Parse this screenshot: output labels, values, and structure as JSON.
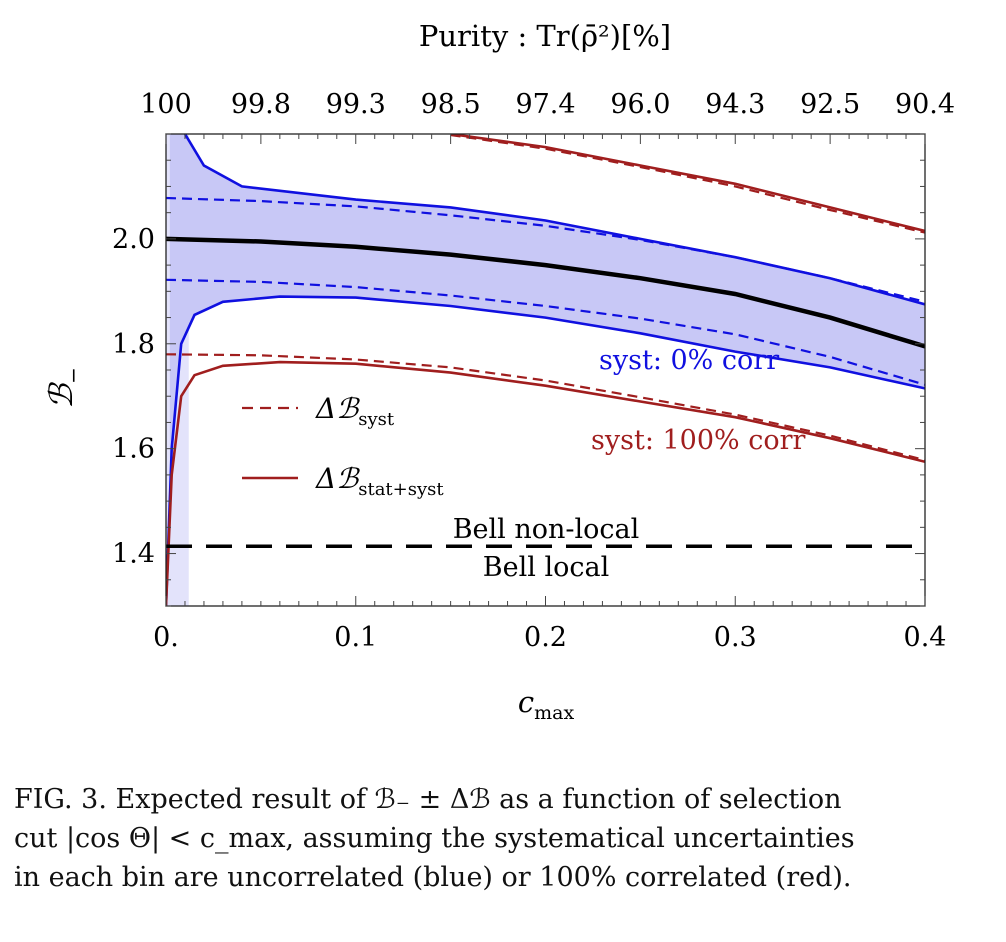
{
  "chart_data": {
    "type": "line",
    "xlabel": "c",
    "xlabel_sub": "max",
    "ylabel": "ℬ",
    "ylabel_sub": "−",
    "top_axis_title": "Purity :  Tr(ρ̄²)[%]",
    "xlim": [
      0.0,
      0.4
    ],
    "ylim": [
      1.3,
      2.2
    ],
    "xticks": [
      0.0,
      0.1,
      0.2,
      0.3,
      0.4
    ],
    "xtick_labels": [
      "0.",
      "0.1",
      "0.2",
      "0.3",
      "0.4"
    ],
    "yticks": [
      1.4,
      1.6,
      1.8,
      2.0
    ],
    "ytick_labels": [
      "1.4",
      "1.6",
      "1.8",
      "2.0"
    ],
    "top_ticks": [
      0.0,
      0.05,
      0.1,
      0.15,
      0.2,
      0.25,
      0.3,
      0.35,
      0.4
    ],
    "top_tick_labels": [
      "100",
      "99.8",
      "99.3",
      "98.5",
      "97.4",
      "96.0",
      "94.3",
      "92.5",
      "90.4"
    ],
    "band_fill_color": "#c8c8f6",
    "band_fill_light_color": "#e3e3fb",
    "series": [
      {
        "name": "",
        "color": "#000000",
        "style": "solid-thick",
        "x": [
          0.0,
          0.05,
          0.1,
          0.15,
          0.2,
          0.25,
          0.3,
          0.35,
          0.4
        ],
        "y": [
          2.0,
          1.995,
          1.985,
          1.97,
          1.95,
          1.925,
          1.895,
          1.85,
          1.795
        ]
      },
      {
        "name": "",
        "color": "#1010e0",
        "style": "solid",
        "x": [
          0.01,
          0.02,
          0.04,
          0.1,
          0.15,
          0.2,
          0.25,
          0.3,
          0.35,
          0.4
        ],
        "y": [
          2.2,
          2.14,
          2.1,
          2.075,
          2.06,
          2.035,
          2.0,
          1.965,
          1.925,
          1.875
        ]
      },
      {
        "name": "",
        "color": "#1010e0",
        "style": "solid",
        "x": [
          0.0,
          0.003,
          0.008,
          0.015,
          0.03,
          0.06,
          0.1,
          0.15,
          0.2,
          0.25,
          0.3,
          0.35,
          0.4
        ],
        "y": [
          1.3,
          1.6,
          1.8,
          1.855,
          1.88,
          1.89,
          1.888,
          1.872,
          1.85,
          1.82,
          1.785,
          1.755,
          1.715
        ]
      },
      {
        "name": "",
        "color": "#1010e0",
        "style": "dashed",
        "x": [
          0.0,
          0.05,
          0.1,
          0.15,
          0.2,
          0.25,
          0.3,
          0.35,
          0.4
        ],
        "y": [
          2.078,
          2.072,
          2.062,
          2.045,
          2.025,
          1.998,
          1.965,
          1.925,
          1.88
        ]
      },
      {
        "name": "",
        "color": "#1010e0",
        "style": "dashed",
        "x": [
          0.0,
          0.05,
          0.1,
          0.15,
          0.2,
          0.25,
          0.3,
          0.35,
          0.4
        ],
        "y": [
          1.922,
          1.918,
          1.908,
          1.892,
          1.872,
          1.848,
          1.818,
          1.775,
          1.722
        ]
      },
      {
        "name": "",
        "color": "#a01e1e",
        "style": "solid",
        "x": [
          0.15,
          0.2,
          0.25,
          0.3,
          0.35,
          0.4
        ],
        "y": [
          2.2,
          2.175,
          2.14,
          2.105,
          2.06,
          2.015
        ]
      },
      {
        "name": "",
        "color": "#a01e1e",
        "style": "dashed",
        "x": [
          0.15,
          0.2,
          0.25,
          0.3,
          0.35,
          0.4
        ],
        "y": [
          2.198,
          2.172,
          2.137,
          2.1,
          2.055,
          2.012
        ]
      },
      {
        "name": "",
        "color": "#a01e1e",
        "style": "solid",
        "x": [
          0.0,
          0.003,
          0.008,
          0.015,
          0.03,
          0.06,
          0.1,
          0.15,
          0.2,
          0.25,
          0.3,
          0.35,
          0.4
        ],
        "y": [
          1.3,
          1.55,
          1.7,
          1.74,
          1.758,
          1.765,
          1.762,
          1.745,
          1.72,
          1.69,
          1.66,
          1.62,
          1.575
        ]
      },
      {
        "name": "",
        "color": "#a01e1e",
        "style": "dashed",
        "x": [
          0.0,
          0.05,
          0.1,
          0.15,
          0.2,
          0.25,
          0.3,
          0.35,
          0.4
        ],
        "y": [
          1.78,
          1.778,
          1.77,
          1.755,
          1.73,
          1.698,
          1.665,
          1.625,
          1.578
        ]
      },
      {
        "name": "",
        "color": "#000000",
        "style": "dashed-thick",
        "x": [
          0.0,
          0.4
        ],
        "y": [
          1.414,
          1.414
        ]
      }
    ],
    "legend": [
      {
        "label": "ΔℬΔ",
        "text": "Δℬ",
        "sub": "syst",
        "color": "#a01e1e",
        "style": "dashed"
      },
      {
        "label": "ΔℬΔ",
        "text": "Δℬ",
        "sub": "stat+syst",
        "color": "#a01e1e",
        "style": "solid"
      }
    ],
    "legend_placement": "left-middle",
    "annotations": [
      {
        "text": "syst: 0% corr",
        "color": "#1010e0"
      },
      {
        "text": "syst: 100% corr",
        "color": "#a01e1e"
      },
      {
        "text": "Bell non-local",
        "color": "#111111"
      },
      {
        "text": "Bell local",
        "color": "#111111"
      }
    ],
    "grid": false
  },
  "caption": {
    "line1": "FIG. 3. Expected result of ℬ₋ ± Δℬ as a function of selection",
    "line2": "cut |cos Θ| < c_max, assuming the systematical uncertainties",
    "line3": "in each bin are uncorrelated (blue) or 100% correlated (red)."
  }
}
